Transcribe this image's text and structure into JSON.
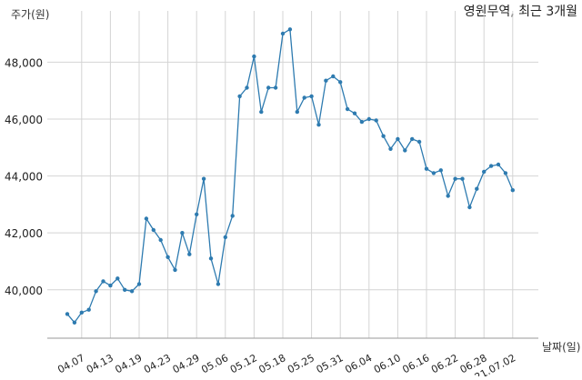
{
  "chart_data": {
    "type": "line",
    "title": "영원무역, 최근 3개월",
    "ylabel": "주가(원)",
    "xlabel": "날짜(일)",
    "ylim": [
      38300,
      49800
    ],
    "yticks": [
      40000,
      42000,
      44000,
      46000,
      48000
    ],
    "ytick_labels": [
      "40,000",
      "42,000",
      "44,000",
      "46,000",
      "48,000"
    ],
    "grid": true,
    "xticks": [
      {
        "i": 2,
        "label": "04.07"
      },
      {
        "i": 6,
        "label": "04.13"
      },
      {
        "i": 10,
        "label": "04.19"
      },
      {
        "i": 14,
        "label": "04.23"
      },
      {
        "i": 18,
        "label": "04.29"
      },
      {
        "i": 22,
        "label": "05.06"
      },
      {
        "i": 26,
        "label": "05.12"
      },
      {
        "i": 30,
        "label": "05.18"
      },
      {
        "i": 34,
        "label": "05.25"
      },
      {
        "i": 38,
        "label": "05.31"
      },
      {
        "i": 42,
        "label": "06.04"
      },
      {
        "i": 46,
        "label": "06.10"
      },
      {
        "i": 50,
        "label": "06.16"
      },
      {
        "i": 54,
        "label": "06.22"
      },
      {
        "i": 58,
        "label": "06.28"
      },
      {
        "i": 62,
        "label": "21.07.02"
      }
    ],
    "series": [
      {
        "color": "#2e7bb0",
        "values": [
          39150,
          38850,
          39200,
          39300,
          39950,
          40300,
          40150,
          40400,
          40000,
          39950,
          40200,
          42500,
          42100,
          41750,
          41150,
          40700,
          42000,
          41250,
          42650,
          43900,
          41100,
          40200,
          41850,
          42600,
          46800,
          47100,
          48200,
          46250,
          47100,
          47100,
          49000,
          49150,
          46250,
          46750,
          46800,
          45800,
          47350,
          47500,
          47300,
          46350,
          46200,
          45900,
          46000,
          45950,
          45400,
          44950,
          45300,
          44900,
          45300,
          45200,
          44250,
          44100,
          44200,
          43300,
          43900,
          43900,
          42900,
          43550,
          44150,
          44350,
          44400,
          44100,
          43500
        ]
      }
    ]
  }
}
